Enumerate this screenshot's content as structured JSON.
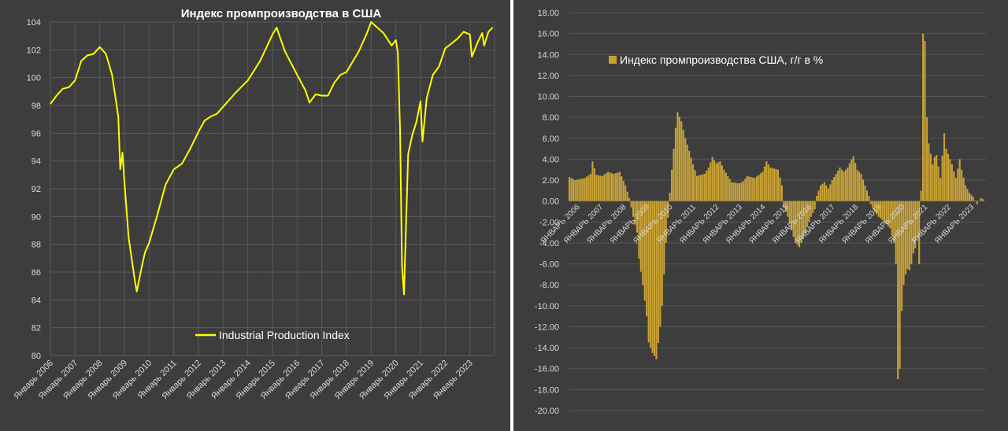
{
  "chart_data": [
    {
      "type": "line",
      "title": "Индекс промпроизводства в США",
      "legend_position": "bottom-center",
      "grid": true,
      "ylim": [
        80,
        104
      ],
      "yticks": [
        "104",
        "102",
        "100",
        "98",
        "96",
        "94",
        "92",
        "90",
        "88",
        "86",
        "84",
        "82",
        "80"
      ],
      "categories": [
        "Январь 2006",
        "Январь 2007",
        "Январь 2008",
        "Январь 2009",
        "Январь 2010",
        "Январь 2011",
        "Январь 2012",
        "Январь 2013",
        "Январь 2014",
        "Январь 2015",
        "Январь 2016",
        "Январь 2017",
        "Январь 2018",
        "Январь 2019",
        "Январь 2020",
        "Январь 2021",
        "Январь 2022",
        "Январь 2023"
      ],
      "series": [
        {
          "name": "Industrial Production Index",
          "color": "#ffff00",
          "points": [
            [
              2006.0,
              98.1
            ],
            [
              2006.25,
              98.7
            ],
            [
              2006.5,
              99.2
            ],
            [
              2006.75,
              99.3
            ],
            [
              2007.0,
              99.8
            ],
            [
              2007.25,
              101.2
            ],
            [
              2007.5,
              101.6
            ],
            [
              2007.75,
              101.7
            ],
            [
              2008.0,
              102.2
            ],
            [
              2008.25,
              101.7
            ],
            [
              2008.5,
              100.2
            ],
            [
              2008.75,
              97.2
            ],
            [
              2008.83,
              93.4
            ],
            [
              2008.92,
              94.6
            ],
            [
              2009.0,
              92.5
            ],
            [
              2009.17,
              88.5
            ],
            [
              2009.42,
              85.4
            ],
            [
              2009.5,
              84.6
            ],
            [
              2009.67,
              86.1
            ],
            [
              2009.83,
              87.4
            ],
            [
              2010.0,
              88.1
            ],
            [
              2010.33,
              90.1
            ],
            [
              2010.67,
              92.3
            ],
            [
              2011.0,
              93.4
            ],
            [
              2011.33,
              93.8
            ],
            [
              2011.67,
              94.9
            ],
            [
              2012.0,
              96.1
            ],
            [
              2012.25,
              96.9
            ],
            [
              2012.5,
              97.2
            ],
            [
              2012.75,
              97.4
            ],
            [
              2013.0,
              97.9
            ],
            [
              2013.5,
              98.9
            ],
            [
              2014.0,
              99.8
            ],
            [
              2014.5,
              101.2
            ],
            [
              2015.0,
              103.1
            ],
            [
              2015.17,
              103.6
            ],
            [
              2015.5,
              101.9
            ],
            [
              2016.0,
              100.2
            ],
            [
              2016.33,
              99.1
            ],
            [
              2016.5,
              98.2
            ],
            [
              2016.75,
              98.8
            ],
            [
              2017.0,
              98.7
            ],
            [
              2017.25,
              98.7
            ],
            [
              2017.5,
              99.6
            ],
            [
              2017.75,
              100.2
            ],
            [
              2018.0,
              100.4
            ],
            [
              2018.5,
              101.9
            ],
            [
              2018.83,
              103.2
            ],
            [
              2019.0,
              104.0
            ],
            [
              2019.5,
              103.2
            ],
            [
              2019.83,
              102.3
            ],
            [
              2020.0,
              102.7
            ],
            [
              2020.08,
              101.8
            ],
            [
              2020.17,
              96.3
            ],
            [
              2020.25,
              86.4
            ],
            [
              2020.33,
              84.4
            ],
            [
              2020.5,
              94.5
            ],
            [
              2020.67,
              95.9
            ],
            [
              2020.83,
              96.8
            ],
            [
              2021.0,
              98.3
            ],
            [
              2021.08,
              95.4
            ],
            [
              2021.25,
              98.5
            ],
            [
              2021.5,
              100.2
            ],
            [
              2021.75,
              100.8
            ],
            [
              2022.0,
              102.1
            ],
            [
              2022.5,
              102.8
            ],
            [
              2022.75,
              103.3
            ],
            [
              2023.0,
              103.1
            ],
            [
              2023.08,
              101.5
            ],
            [
              2023.33,
              102.6
            ],
            [
              2023.5,
              103.2
            ],
            [
              2023.58,
              102.3
            ],
            [
              2023.75,
              103.3
            ],
            [
              2023.92,
              103.6
            ]
          ]
        }
      ]
    },
    {
      "type": "bar",
      "title": "",
      "legend_position": "top-left",
      "grid": true,
      "ylim": [
        -20,
        18
      ],
      "yticks": [
        "18.00",
        "16.00",
        "14.00",
        "12.00",
        "10.00",
        "8.00",
        "6.00",
        "4.00",
        "2.00",
        "0.00",
        "-2.00",
        "-4.00",
        "-6.00",
        "-8.00",
        "-10.00",
        "-12.00",
        "-14.00",
        "-16.00",
        "-18.00",
        "-20.00"
      ],
      "categories": [
        "ЯНВАРЬ 2006",
        "ЯНВАРЬ 2007",
        "ЯНВАРЬ 2008",
        "ЯНВАРЬ 2009",
        "ЯНВАРЬ 2010",
        "ЯНВАРЬ 2011",
        "ЯНВАРЬ 2012",
        "ЯНВАРЬ 2013",
        "ЯНВАРЬ 2014",
        "ЯНВАРЬ 2015",
        "ЯНВАРЬ 2016",
        "ЯНВАРЬ 2017",
        "ЯНВАРЬ 2018",
        "ЯНВАРЬ 2019",
        "ЯНВАРЬ 2020",
        "ЯНВАРЬ 2021",
        "ЯНВАРЬ 2022",
        "ЯНВАРЬ 2023"
      ],
      "series": [
        {
          "name": "Индекс промпроизводства США, г/г в %",
          "color": "#c9a236",
          "keypoints": [
            [
              0,
              2.3
            ],
            [
              3,
              2.0
            ],
            [
              8,
              2.2
            ],
            [
              11,
              2.6
            ],
            [
              12,
              3.8
            ],
            [
              14,
              2.5
            ],
            [
              17,
              2.4
            ],
            [
              20,
              2.8
            ],
            [
              23,
              2.6
            ],
            [
              26,
              2.8
            ],
            [
              29,
              1.5
            ],
            [
              31,
              0.3
            ],
            [
              33,
              -1.5
            ],
            [
              35,
              -3.0
            ],
            [
              36,
              -5.5
            ],
            [
              38,
              -8.0
            ],
            [
              40,
              -11.0
            ],
            [
              41,
              -13.5
            ],
            [
              43,
              -14.5
            ],
            [
              45,
              -15.1
            ],
            [
              47,
              -12.0
            ],
            [
              48,
              -10.0
            ],
            [
              50,
              -4.0
            ],
            [
              52,
              0.8
            ],
            [
              53,
              3.0
            ],
            [
              55,
              7.0
            ],
            [
              56,
              8.5
            ],
            [
              58,
              7.6
            ],
            [
              60,
              6.0
            ],
            [
              62,
              4.8
            ],
            [
              64,
              3.5
            ],
            [
              66,
              2.4
            ],
            [
              70,
              2.6
            ],
            [
              72,
              3.2
            ],
            [
              74,
              4.2
            ],
            [
              76,
              3.6
            ],
            [
              78,
              3.8
            ],
            [
              80,
              3.0
            ],
            [
              82,
              2.4
            ],
            [
              84,
              1.8
            ],
            [
              88,
              1.7
            ],
            [
              90,
              1.9
            ],
            [
              92,
              2.4
            ],
            [
              96,
              2.2
            ],
            [
              100,
              2.8
            ],
            [
              102,
              3.8
            ],
            [
              104,
              3.2
            ],
            [
              108,
              3.0
            ],
            [
              110,
              1.5
            ],
            [
              111,
              -0.5
            ],
            [
              113,
              -1.5
            ],
            [
              115,
              -2.8
            ],
            [
              117,
              -4.0
            ],
            [
              119,
              -4.4
            ],
            [
              121,
              -3.6
            ],
            [
              123,
              -2.5
            ],
            [
              125,
              -1.5
            ],
            [
              127,
              -0.8
            ],
            [
              128,
              0.5
            ],
            [
              130,
              1.5
            ],
            [
              132,
              1.8
            ],
            [
              134,
              1.2
            ],
            [
              136,
              2.0
            ],
            [
              138,
              2.6
            ],
            [
              140,
              3.2
            ],
            [
              142,
              2.8
            ],
            [
              144,
              3.2
            ],
            [
              146,
              4.0
            ],
            [
              147,
              4.3
            ],
            [
              149,
              3.0
            ],
            [
              151,
              2.6
            ],
            [
              153,
              1.5
            ],
            [
              155,
              0.5
            ],
            [
              156,
              -0.3
            ],
            [
              158,
              -1.0
            ],
            [
              160,
              -1.5
            ],
            [
              162,
              -1.8
            ],
            [
              164,
              -2.2
            ],
            [
              166,
              -2.6
            ],
            [
              168,
              -4.0
            ],
            [
              169,
              -6.0
            ],
            [
              170,
              -17.0
            ],
            [
              171,
              -16.0
            ],
            [
              172,
              -10.5
            ],
            [
              173,
              -8.0
            ],
            [
              174,
              -7.0
            ],
            [
              175,
              -6.5
            ],
            [
              176,
              -6.6
            ],
            [
              177,
              -6.0
            ],
            [
              178,
              -5.0
            ],
            [
              179,
              -4.5
            ],
            [
              180,
              -3.5
            ],
            [
              181,
              -6.0
            ],
            [
              182,
              1.0
            ],
            [
              183,
              16.0
            ],
            [
              184,
              15.3
            ],
            [
              185,
              8.0
            ],
            [
              186,
              5.5
            ],
            [
              187,
              4.5
            ],
            [
              188,
              3.5
            ],
            [
              189,
              4.2
            ],
            [
              190,
              4.4
            ],
            [
              192,
              2.2
            ],
            [
              194,
              6.5
            ],
            [
              195,
              5.0
            ],
            [
              196,
              4.5
            ],
            [
              198,
              3.5
            ],
            [
              200,
              2.2
            ],
            [
              202,
              4.0
            ],
            [
              203,
              3.0
            ],
            [
              205,
              1.5
            ],
            [
              207,
              0.8
            ],
            [
              209,
              0.4
            ],
            [
              211,
              -0.3
            ],
            [
              213,
              0.3
            ],
            [
              214,
              0.2
            ]
          ]
        }
      ]
    }
  ]
}
